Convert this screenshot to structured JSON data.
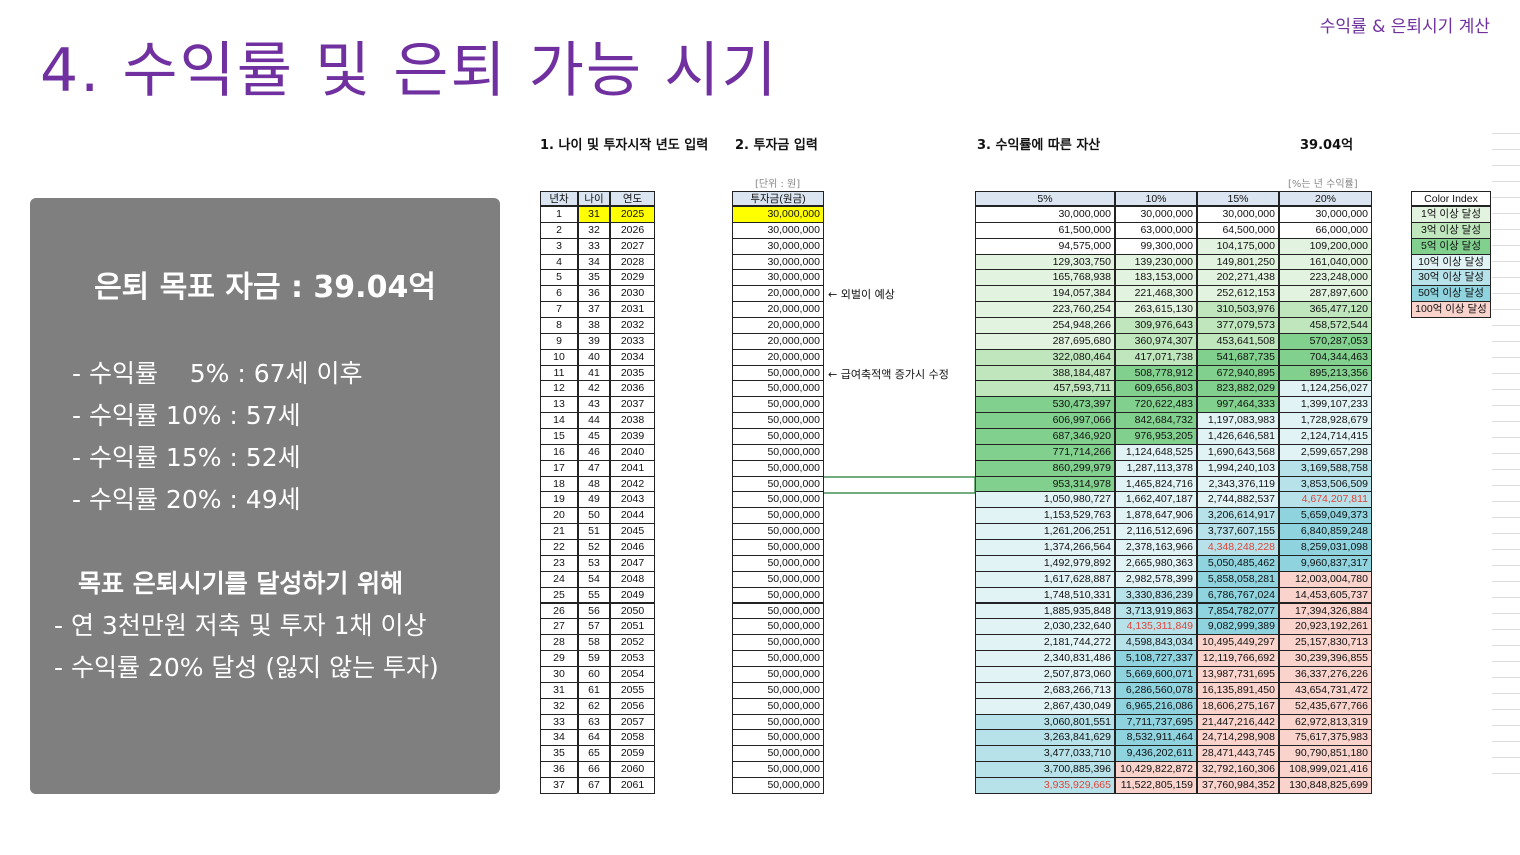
{
  "header": {
    "title": "4. 수익률 및 은퇴 가능 시기",
    "tag": "수익률 & 은퇴시기 계산"
  },
  "summary": {
    "heading": "은퇴 목표 자금 : 39.04억",
    "lines": [
      "- 수익률    5% : 67세 이후",
      "- 수익률 10% : 57세",
      "- 수익률 15% : 52세",
      "- 수익률 20% : 49세"
    ],
    "subheading": "목표 은퇴시기를 달성하기 위해",
    "goals": [
      "- 연 3천만원 저축 및 투자 1채 이상",
      "- 수익률 20% 달성 (잃지 않는 투자)"
    ]
  },
  "sheet": {
    "section1": "1. 나이 및 투자시작 년도 입력",
    "section2": "2. 투자금 입력",
    "section3": "3. 수익률에 따른 자산",
    "target": {
      "label": "39.04억",
      "value": 3904000000,
      "color": "#e0443a"
    },
    "unit_note": "[단위 : 원]",
    "rate_note": "[%는 년 수익률]",
    "columns": [
      "년차",
      "나이",
      "연도",
      "투자금(원금)"
    ],
    "rates": [
      "5%",
      "10%",
      "15%",
      "20%"
    ],
    "input_color": "#ffff00",
    "color_index": {
      "title": "Color Index",
      "items": [
        {
          "label": "1억 이상 달성",
          "min": 100000000,
          "color": "#e2f3df"
        },
        {
          "label": "3억 이상 달성",
          "min": 300000000,
          "color": "#bfe6bd"
        },
        {
          "label": "5억 이상 달성",
          "min": 500000000,
          "color": "#82d08e"
        },
        {
          "label": "10억 이상 달성",
          "min": 1000000000,
          "color": "#e2f3f6"
        },
        {
          "label": "30억 이상 달성",
          "min": 3000000000,
          "color": "#b7e2e9"
        },
        {
          "label": "50억 이상 달성",
          "min": 5000000000,
          "color": "#8fd3df"
        },
        {
          "label": "100억 이상 달성",
          "min": 10000000000,
          "color": "#f9d3cc"
        }
      ]
    },
    "rows": [
      {
        "cells": [
          1,
          31,
          2025,
          "30,000,000",
          "30,000,000",
          "30,000,000",
          "30,000,000",
          "30,000,000"
        ]
      },
      {
        "cells": [
          2,
          32,
          2026,
          "30,000,000",
          "61,500,000",
          "63,000,000",
          "64,500,000",
          "66,000,000"
        ]
      },
      {
        "cells": [
          3,
          33,
          2027,
          "30,000,000",
          "94,575,000",
          "99,300,000",
          "104,175,000",
          "109,200,000"
        ]
      },
      {
        "cells": [
          4,
          34,
          2028,
          "30,000,000",
          "129,303,750",
          "139,230,000",
          "149,801,250",
          "161,040,000"
        ]
      },
      {
        "cells": [
          5,
          35,
          2029,
          "30,000,000",
          "165,768,938",
          "183,153,000",
          "202,271,438",
          "223,248,000"
        ]
      },
      {
        "cells": [
          6,
          36,
          2030,
          "20,000,000",
          "194,057,384",
          "221,468,300",
          "252,612,153",
          "287,897,600"
        ],
        "note": "← 외벌이 예상"
      },
      {
        "cells": [
          7,
          37,
          2031,
          "20,000,000",
          "223,760,254",
          "263,615,130",
          "310,503,976",
          "365,477,120"
        ]
      },
      {
        "cells": [
          8,
          38,
          2032,
          "20,000,000",
          "254,948,266",
          "309,976,643",
          "377,079,573",
          "458,572,544"
        ]
      },
      {
        "cells": [
          9,
          39,
          2033,
          "20,000,000",
          "287,695,680",
          "360,974,307",
          "453,641,508",
          "570,287,053"
        ]
      },
      {
        "cells": [
          10,
          40,
          2034,
          "20,000,000",
          "322,080,464",
          "417,071,738",
          "541,687,735",
          "704,344,463"
        ]
      },
      {
        "cells": [
          11,
          41,
          2035,
          "50,000,000",
          "388,184,487",
          "508,778,912",
          "672,940,895",
          "895,213,356"
        ],
        "note": "← 급여축적액 증가시 수정"
      },
      {
        "cells": [
          12,
          42,
          2036,
          "50,000,000",
          "457,593,711",
          "609,656,803",
          "823,882,029",
          "1,124,256,027"
        ]
      },
      {
        "cells": [
          13,
          43,
          2037,
          "50,000,000",
          "530,473,397",
          "720,622,483",
          "997,464,333",
          "1,399,107,233"
        ]
      },
      {
        "cells": [
          14,
          44,
          2038,
          "50,000,000",
          "606,997,066",
          "842,684,732",
          "1,197,083,983",
          "1,728,928,679"
        ]
      },
      {
        "cells": [
          15,
          45,
          2039,
          "50,000,000",
          "687,346,920",
          "976,953,205",
          "1,426,646,581",
          "2,124,714,415"
        ]
      },
      {
        "cells": [
          16,
          46,
          2040,
          "50,000,000",
          "771,714,266",
          "1,124,648,525",
          "1,690,643,568",
          "2,599,657,298"
        ]
      },
      {
        "cells": [
          17,
          47,
          2041,
          "50,000,000",
          "860,299,979",
          "1,287,113,378",
          "1,994,240,103",
          "3,169,588,758"
        ]
      },
      {
        "cells": [
          18,
          48,
          2042,
          "50,000,000",
          "953,314,978",
          "1,465,824,716",
          "2,343,376,119",
          "3,853,506,509"
        ]
      },
      {
        "cells": [
          19,
          49,
          2043,
          "50,000,000",
          "1,050,980,727",
          "1,662,407,187",
          "2,744,882,537",
          "4,674,207,811"
        ]
      },
      {
        "cells": [
          20,
          50,
          2044,
          "50,000,000",
          "1,153,529,763",
          "1,878,647,906",
          "3,206,614,917",
          "5,659,049,373"
        ]
      },
      {
        "cells": [
          21,
          51,
          2045,
          "50,000,000",
          "1,261,206,251",
          "2,116,512,696",
          "3,737,607,155",
          "6,840,859,248"
        ]
      },
      {
        "cells": [
          22,
          52,
          2046,
          "50,000,000",
          "1,374,266,564",
          "2,378,163,966",
          "4,348,248,228",
          "8,259,031,098"
        ]
      },
      {
        "cells": [
          23,
          53,
          2047,
          "50,000,000",
          "1,492,979,892",
          "2,665,980,363",
          "5,050,485,462",
          "9,960,837,317"
        ]
      },
      {
        "cells": [
          24,
          54,
          2048,
          "50,000,000",
          "1,617,628,887",
          "2,982,578,399",
          "5,858,058,281",
          "12,003,004,780"
        ]
      },
      {
        "cells": [
          25,
          55,
          2049,
          "50,000,000",
          "1,748,510,331",
          "3,330,836,239",
          "6,786,767,024",
          "14,453,605,737"
        ]
      },
      {
        "cells": [
          26,
          56,
          2050,
          "50,000,000",
          "1,885,935,848",
          "3,713,919,863",
          "7,854,782,077",
          "17,394,326,884"
        ]
      },
      {
        "cells": [
          27,
          57,
          2051,
          "50,000,000",
          "2,030,232,640",
          "4,135,311,849",
          "9,082,999,389",
          "20,923,192,261"
        ]
      },
      {
        "cells": [
          28,
          58,
          2052,
          "50,000,000",
          "2,181,744,272",
          "4,598,843,034",
          "10,495,449,297",
          "25,157,830,713"
        ]
      },
      {
        "cells": [
          29,
          59,
          2053,
          "50,000,000",
          "2,340,831,486",
          "5,108,727,337",
          "12,119,766,692",
          "30,239,396,855"
        ]
      },
      {
        "cells": [
          30,
          60,
          2054,
          "50,000,000",
          "2,507,873,060",
          "5,669,600,071",
          "13,987,731,695",
          "36,337,276,226"
        ]
      },
      {
        "cells": [
          31,
          61,
          2055,
          "50,000,000",
          "2,683,266,713",
          "6,286,560,078",
          "16,135,891,450",
          "43,654,731,472"
        ]
      },
      {
        "cells": [
          32,
          62,
          2056,
          "50,000,000",
          "2,867,430,049",
          "6,965,216,086",
          "18,606,275,167",
          "52,435,677,766"
        ]
      },
      {
        "cells": [
          33,
          63,
          2057,
          "50,000,000",
          "3,060,801,551",
          "7,711,737,695",
          "21,447,216,442",
          "62,972,813,319"
        ]
      },
      {
        "cells": [
          34,
          64,
          2058,
          "50,000,000",
          "3,263,841,629",
          "8,532,911,464",
          "24,714,298,908",
          "75,617,375,983"
        ]
      },
      {
        "cells": [
          35,
          65,
          2059,
          "50,000,000",
          "3,477,033,710",
          "9,436,202,611",
          "28,471,443,745",
          "90,790,851,180"
        ]
      },
      {
        "cells": [
          36,
          66,
          2060,
          "50,000,000",
          "3,700,885,396",
          "10,429,822,872",
          "32,792,160,306",
          "108,999,021,416"
        ]
      },
      {
        "cells": [
          37,
          67,
          2061,
          "50,000,000",
          "3,935,929,665",
          "11,522,805,159",
          "37,760,984,352",
          "130,848,825,699"
        ]
      }
    ]
  }
}
